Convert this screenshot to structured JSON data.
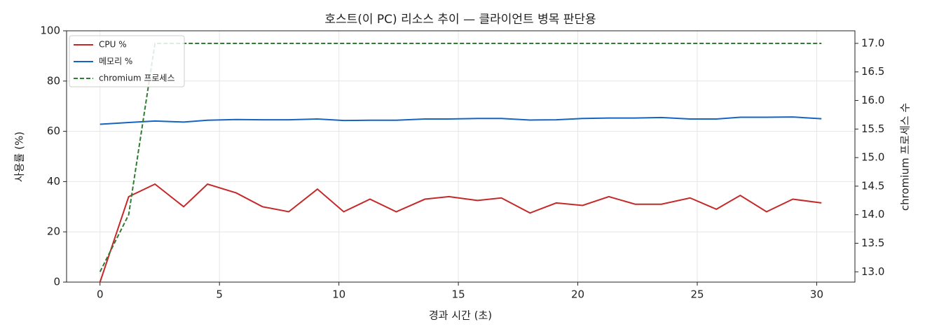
{
  "chart_data": {
    "type": "line",
    "title": "호스트(이 PC) 리소스 추이 — 클라이언트 병목 판단용",
    "x_label": "경과 시간 (초)",
    "y_label": "사용률 (%)",
    "y2_label": "chromium 프로세스 수",
    "x": [
      0,
      1.2,
      2.3,
      3.5,
      4.5,
      5.7,
      6.8,
      7.9,
      9.1,
      10.2,
      11.3,
      12.4,
      13.6,
      14.6,
      15.8,
      16.8,
      18.0,
      19.1,
      20.2,
      21.3,
      22.4,
      23.5,
      24.7,
      25.8,
      26.8,
      27.9,
      29.0,
      30.2
    ],
    "series": [
      {
        "name": "CPU %",
        "color": "#c62828",
        "linestyle": "solid",
        "values": [
          0,
          34,
          39,
          30,
          39,
          35.5,
          30,
          28,
          37,
          28,
          33,
          28,
          33,
          34,
          32.5,
          33.5,
          27.5,
          31.5,
          30.5,
          34,
          31,
          31,
          33.5,
          29,
          34.5,
          28,
          33,
          31.5
        ]
      },
      {
        "name": "메모리 %",
        "color": "#1565c0",
        "linestyle": "solid",
        "values": [
          62.8,
          63.5,
          64.1,
          63.7,
          64.4,
          64.7,
          64.6,
          64.6,
          64.9,
          64.3,
          64.4,
          64.4,
          64.9,
          64.9,
          65.1,
          65.1,
          64.5,
          64.6,
          65.1,
          65.3,
          65.3,
          65.5,
          64.9,
          64.9,
          65.6,
          65.6,
          65.7,
          65.0
        ]
      },
      {
        "name": "chromium 프로세스",
        "color": "#2e7d32",
        "linestyle": "dashed",
        "axis": "y2",
        "values": [
          13,
          14,
          17,
          17,
          17,
          17,
          17,
          17,
          17,
          17,
          17,
          17,
          17,
          17,
          17,
          17,
          17,
          17,
          17,
          17,
          17,
          17,
          17,
          17,
          17,
          17,
          17,
          17
        ]
      }
    ],
    "xlim": [
      -1.4,
      31.6
    ],
    "xticks": [
      0,
      5,
      10,
      15,
      20,
      25,
      30
    ],
    "ylim": [
      0,
      100
    ],
    "yticks": [
      0,
      20,
      40,
      60,
      80,
      100
    ],
    "y2lim": [
      12.82,
      17.22
    ],
    "y2ticks": [
      {
        "value": 13,
        "label": "13.0"
      },
      {
        "value": 13.5,
        "label": "13.5"
      },
      {
        "value": 14,
        "label": "14.0"
      },
      {
        "value": 14.5,
        "label": "14.5"
      },
      {
        "value": 15,
        "label": "15.0"
      },
      {
        "value": 15.5,
        "label": "15.5"
      },
      {
        "value": 16,
        "label": "16.0"
      },
      {
        "value": 16.5,
        "label": "16.5"
      },
      {
        "value": 17,
        "label": "17.0"
      }
    ],
    "grid": true,
    "legend": "upper-left"
  }
}
